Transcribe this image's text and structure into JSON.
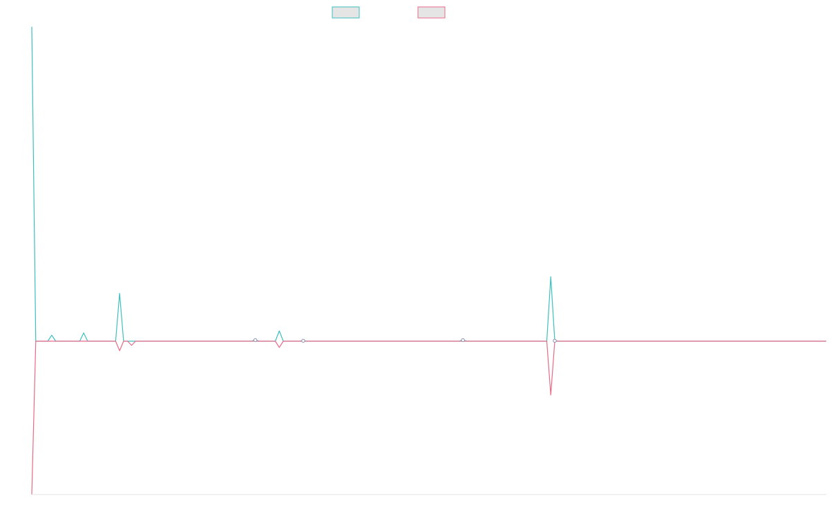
{
  "chart_data": {
    "type": "line",
    "title": "",
    "xlabel": "",
    "ylabel": "",
    "legend_position": "top-center",
    "grid": false,
    "x_count": 200,
    "ylim": [
      -100,
      100
    ],
    "series": [
      {
        "name": "",
        "color": "#3bbfbf",
        "fill": "#e5e5e5",
        "points": [
          [
            0,
            205
          ],
          [
            1,
            0
          ],
          [
            5,
            3.9
          ],
          [
            13,
            5.4
          ],
          [
            22,
            31.2
          ],
          [
            56,
            0.7
          ],
          [
            62,
            6.7
          ],
          [
            68,
            0.3
          ],
          [
            108,
            0.7
          ],
          [
            130,
            42.0
          ],
          [
            131,
            0.3
          ],
          [
            199,
            0
          ]
        ]
      },
      {
        "name": "",
        "color": "#e86a86",
        "fill": "#e5e5e5",
        "points": [
          [
            0,
            -100
          ],
          [
            1,
            0
          ],
          [
            22,
            -6.2
          ],
          [
            25,
            -2.7
          ],
          [
            62,
            -4.1
          ],
          [
            130,
            -35.1
          ],
          [
            131,
            0
          ],
          [
            199,
            0
          ]
        ]
      }
    ]
  }
}
